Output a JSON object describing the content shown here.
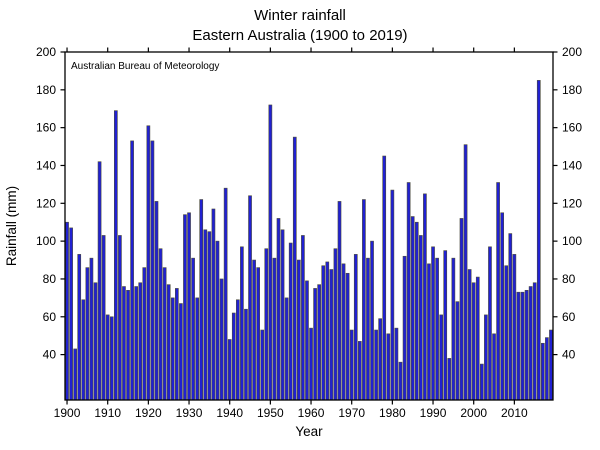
{
  "chart_data": {
    "type": "bar",
    "title": "Winter rainfall",
    "subtitle": "Eastern Australia (1900 to 2019)",
    "annotation": "Australian Bureau of Meteorology",
    "xlabel": "Year",
    "ylabel": "Rainfall (mm)",
    "x_start": 1900,
    "x_end": 2019,
    "x_step": 1,
    "values": [
      110,
      107,
      43,
      93,
      69,
      86,
      91,
      78,
      142,
      103,
      61,
      60,
      169,
      103,
      76,
      74,
      153,
      76,
      78,
      86,
      161,
      153,
      121,
      96,
      86,
      77,
      70,
      75,
      67,
      114,
      115,
      91,
      70,
      122,
      106,
      105,
      117,
      100,
      80,
      128,
      48,
      62,
      69,
      97,
      64,
      124,
      90,
      86,
      53,
      96,
      172,
      91,
      112,
      106,
      70,
      99,
      155,
      90,
      103,
      79,
      54,
      75,
      77,
      87,
      89,
      85,
      96,
      121,
      88,
      83,
      53,
      93,
      47,
      122,
      91,
      100,
      53,
      59,
      145,
      51,
      127,
      54,
      36,
      92,
      131,
      113,
      110,
      103,
      125,
      88,
      97,
      91,
      61,
      95,
      38,
      91,
      68,
      112,
      151,
      85,
      78,
      81,
      35,
      61,
      97,
      51,
      131,
      115,
      87,
      104,
      93,
      73,
      73,
      74,
      76,
      78,
      185,
      46,
      49,
      53
    ],
    "ylim": [
      16,
      200
    ],
    "yticks": [
      40,
      60,
      80,
      100,
      120,
      140,
      160,
      180,
      200
    ],
    "xticks": [
      1900,
      1910,
      1920,
      1930,
      1940,
      1950,
      1960,
      1970,
      1980,
      1990,
      2000,
      2010
    ],
    "grid": "off",
    "legend": "none",
    "bar_color": "#2121d1",
    "bar_edge_color": "#4a4a3a",
    "axis_color": "#000000"
  }
}
